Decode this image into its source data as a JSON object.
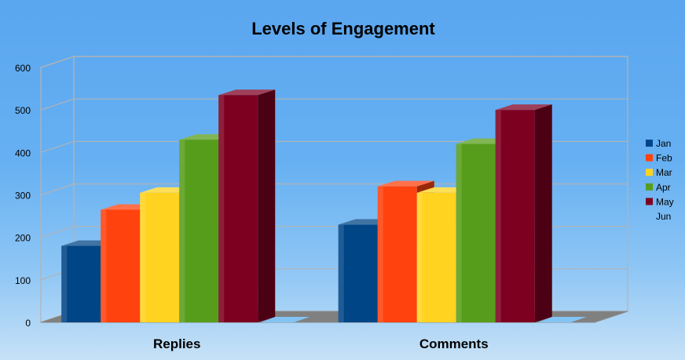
{
  "chart_data": {
    "type": "bar",
    "title": "Levels of Engagement",
    "categories": [
      "Replies",
      "Comments"
    ],
    "series": [
      {
        "name": "Jan",
        "color": "#004586",
        "values": [
          180,
          230
        ]
      },
      {
        "name": "Feb",
        "color": "#ff420e",
        "values": [
          265,
          320
        ]
      },
      {
        "name": "Mar",
        "color": "#ffd320",
        "values": [
          305,
          305
        ]
      },
      {
        "name": "Apr",
        "color": "#579d1c",
        "values": [
          430,
          420
        ]
      },
      {
        "name": "May",
        "color": "#7e0021",
        "values": [
          535,
          500
        ]
      },
      {
        "name": "Jun",
        "color": "#83caff",
        "values": [
          0,
          0
        ]
      }
    ],
    "y_ticks": [
      "0",
      "100",
      "200",
      "300",
      "400",
      "500",
      "600"
    ],
    "ylim": [
      0,
      600
    ],
    "grid": true,
    "legend_position": "right",
    "three_d": true
  }
}
